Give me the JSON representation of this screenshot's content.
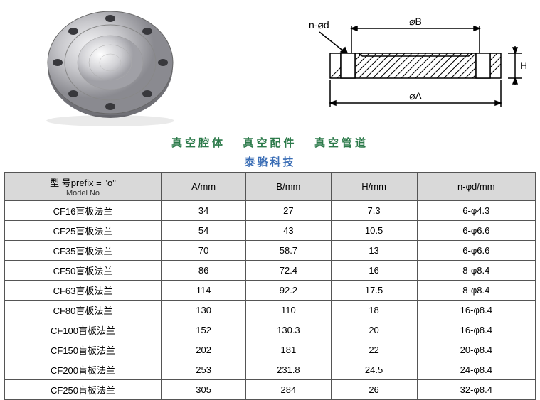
{
  "captions": {
    "line1_a": "真空腔体",
    "line1_b": "真空配件",
    "line1_c": "真空管道",
    "line2": "泰骆科技"
  },
  "diagram": {
    "label_nd": "n-⌀d",
    "label_B": "⌀B",
    "label_A": "⌀A",
    "label_H": "H"
  },
  "table": {
    "headers": {
      "model_top": "型      号prefix = \"o\"",
      "model_bot": "Model No",
      "a": "A/mm",
      "b": "B/mm",
      "h": "H/mm",
      "nd": "n-φd/mm"
    },
    "rows": [
      {
        "model": "CF16盲板法兰",
        "a": "34",
        "b": "27",
        "h": "7.3",
        "nd": "6-φ4.3"
      },
      {
        "model": "CF25盲板法兰",
        "a": "54",
        "b": "43",
        "h": "10.5",
        "nd": "6-φ6.6"
      },
      {
        "model": "CF35盲板法兰",
        "a": "70",
        "b": "58.7",
        "h": "13",
        "nd": "6-φ6.6"
      },
      {
        "model": "CF50盲板法兰",
        "a": "86",
        "b": "72.4",
        "h": "16",
        "nd": "8-φ8.4"
      },
      {
        "model": "CF63盲板法兰",
        "a": "114",
        "b": "92.2",
        "h": "17.5",
        "nd": "8-φ8.4"
      },
      {
        "model": "CF80盲板法兰",
        "a": "130",
        "b": "110",
        "h": "18",
        "nd": "16-φ8.4"
      },
      {
        "model": "CF100盲板法兰",
        "a": "152",
        "b": "130.3",
        "h": "20",
        "nd": "16-φ8.4"
      },
      {
        "model": "CF150盲板法兰",
        "a": "202",
        "b": "181",
        "h": "22",
        "nd": "20-φ8.4"
      },
      {
        "model": "CF200盲板法兰",
        "a": "253",
        "b": "231.8",
        "h": "24.5",
        "nd": "24-φ8.4"
      },
      {
        "model": "CF250盲板法兰",
        "a": "305",
        "b": "284",
        "h": "26",
        "nd": "32-φ8.4"
      }
    ]
  },
  "styling": {
    "header_bg": "#d9d9d9",
    "border_color": "#555",
    "caption1_color": "#2c7a4a",
    "caption2_color": "#3a6db5",
    "flange_metal_light": "#e8e8ea",
    "flange_metal_dark": "#8a8a90",
    "flange_hole": "#38383c"
  }
}
